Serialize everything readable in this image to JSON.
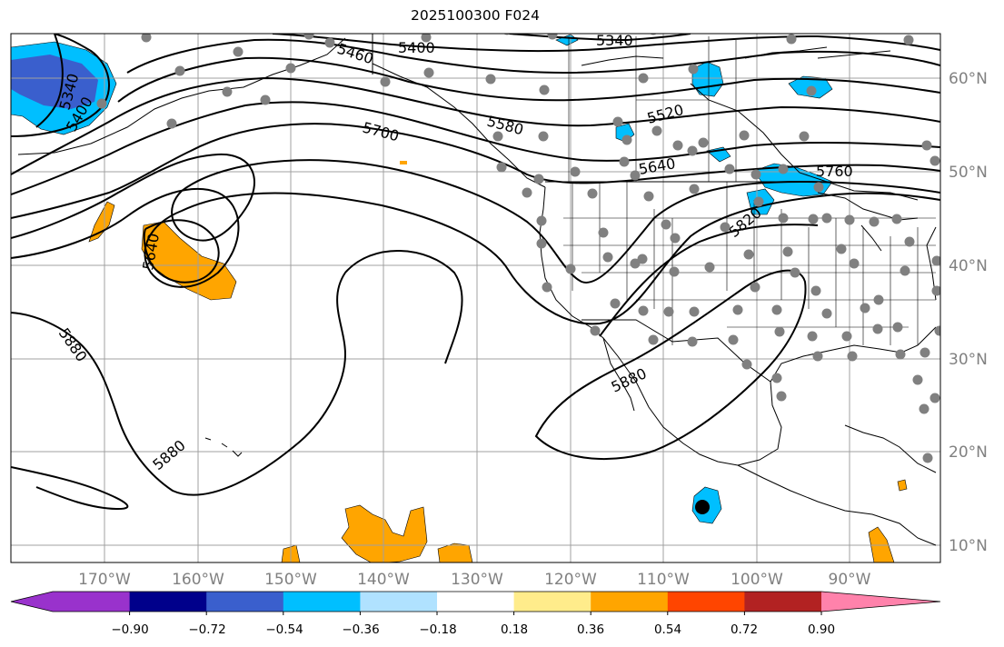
{
  "title": "2025100300 F024",
  "lat_labels": [
    "60°N",
    "50°N",
    "40°N",
    "30°N",
    "20°N",
    "10°N"
  ],
  "lon_labels": [
    "170°W",
    "160°W",
    "150°W",
    "140°W",
    "130°W",
    "120°W",
    "110°W",
    "100°W",
    "90°W"
  ],
  "contours": {
    "color": "#000000",
    "labels": [
      "5340",
      "5400",
      "5460",
      "5400",
      "5340",
      "5520",
      "5580",
      "5640",
      "5700",
      "5760",
      "5820",
      "5640",
      "5880",
      "5880",
      "5880"
    ]
  },
  "colorbar": {
    "ticks": [
      "−0.90",
      "−0.72",
      "−0.54",
      "−0.36",
      "−0.18",
      "0.18",
      "0.36",
      "0.54",
      "0.72",
      "0.90"
    ],
    "colors": [
      "#9932cc",
      "#00008b",
      "#3a5fcd",
      "#00bfff",
      "#b0e2ff",
      "#ffffff",
      "#ffec8b",
      "#ffa500",
      "#ff4500",
      "#b22222",
      "#ff82ab"
    ]
  },
  "fill_colors": {
    "negative_strong": "#3a5fcd",
    "negative": "#00bfff",
    "positive": "#ffa500"
  },
  "station_color": "#808080",
  "storm_marker_color": "#000000",
  "gridline_color": "#a0a0a0"
}
